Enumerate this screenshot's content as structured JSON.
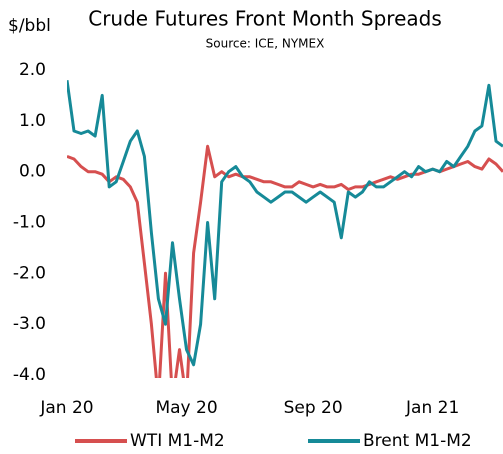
{
  "chart_data": {
    "type": "line",
    "title": "Crude Futures Front Month Spreads",
    "subtitle": "Source: ICE, NYMEX",
    "y_label": "$/bbl",
    "categories": [
      "Jan 20",
      null,
      null,
      null,
      null,
      null,
      null,
      null,
      null,
      null,
      null,
      null,
      null,
      null,
      null,
      null,
      null,
      "May 20",
      null,
      null,
      null,
      null,
      null,
      null,
      null,
      null,
      null,
      null,
      null,
      null,
      null,
      null,
      null,
      null,
      null,
      "Sep 20",
      null,
      null,
      null,
      null,
      null,
      null,
      null,
      null,
      null,
      null,
      null,
      null,
      null,
      null,
      null,
      null,
      "Jan 21",
      null,
      null,
      null,
      null,
      null,
      null,
      null,
      null,
      null,
      null
    ],
    "series": [
      {
        "name": "WTI M1-M2",
        "color": "#d64f4f",
        "values": [
          0.3,
          0.25,
          0.1,
          0.0,
          0.0,
          -0.05,
          -0.2,
          -0.1,
          -0.15,
          -0.3,
          -0.6,
          -1.8,
          -3.0,
          -4.5,
          -2.0,
          -4.5,
          -3.5,
          -4.5,
          -1.6,
          -0.6,
          0.5,
          -0.1,
          0.0,
          -0.1,
          -0.05,
          -0.1,
          -0.1,
          -0.15,
          -0.2,
          -0.2,
          -0.25,
          -0.3,
          -0.3,
          -0.2,
          -0.25,
          -0.3,
          -0.25,
          -0.3,
          -0.3,
          -0.25,
          -0.35,
          -0.3,
          -0.3,
          -0.25,
          -0.2,
          -0.15,
          -0.1,
          -0.15,
          -0.1,
          -0.05,
          -0.05,
          0.0,
          0.05,
          0.0,
          0.05,
          0.1,
          0.15,
          0.2,
          0.1,
          0.05,
          0.25,
          0.15,
          0.0
        ]
      },
      {
        "name": "Brent M1-M2",
        "color": "#168a98",
        "values": [
          1.8,
          0.8,
          0.75,
          0.8,
          0.7,
          1.5,
          -0.3,
          -0.2,
          0.2,
          0.6,
          0.8,
          0.3,
          -1.2,
          -2.5,
          -3.0,
          -1.4,
          -2.5,
          -3.5,
          -3.8,
          -3.0,
          -1.0,
          -2.5,
          -0.2,
          0.0,
          0.1,
          -0.1,
          -0.2,
          -0.4,
          -0.5,
          -0.6,
          -0.5,
          -0.4,
          -0.4,
          -0.5,
          -0.6,
          -0.5,
          -0.4,
          -0.5,
          -0.6,
          -1.3,
          -0.4,
          -0.5,
          -0.4,
          -0.2,
          -0.3,
          -0.3,
          -0.2,
          -0.1,
          0.0,
          -0.1,
          0.1,
          0.0,
          0.05,
          0.0,
          0.2,
          0.1,
          0.3,
          0.5,
          0.8,
          0.9,
          1.7,
          0.6,
          0.5
        ]
      }
    ],
    "ylim": [
      -4,
      2
    ],
    "yticks": [
      {
        "value": 2,
        "label": "2.0"
      },
      {
        "value": 1,
        "label": "1.0"
      },
      {
        "value": 0,
        "label": "0.0"
      },
      {
        "value": -1,
        "label": "-1.0"
      },
      {
        "value": -2,
        "label": "-2.0"
      },
      {
        "value": -3,
        "label": "-3.0"
      },
      {
        "value": -4,
        "label": "-4.0"
      }
    ],
    "legend": "bottom"
  }
}
